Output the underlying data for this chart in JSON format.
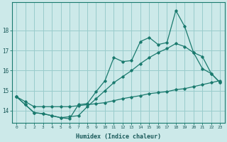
{
  "xlabel": "Humidex (Indice chaleur)",
  "background_color": "#cce9e9",
  "grid_color": "#99cccc",
  "line_color": "#1a7a6e",
  "x_values": [
    0,
    1,
    2,
    3,
    4,
    5,
    6,
    7,
    8,
    9,
    10,
    11,
    12,
    13,
    14,
    15,
    16,
    17,
    18,
    19,
    20,
    21,
    22,
    23
  ],
  "line1_y": [
    14.7,
    14.3,
    13.9,
    13.85,
    13.75,
    13.65,
    13.6,
    14.3,
    14.35,
    14.95,
    15.5,
    16.65,
    16.45,
    16.5,
    17.45,
    17.65,
    17.3,
    17.4,
    19.0,
    18.2,
    16.9,
    16.1,
    15.85,
    15.4
  ],
  "line2_y": [
    14.7,
    14.3,
    13.9,
    13.85,
    13.75,
    13.65,
    13.7,
    13.75,
    14.2,
    14.6,
    15.0,
    15.4,
    15.7,
    16.0,
    16.35,
    16.65,
    16.9,
    17.1,
    17.35,
    17.2,
    16.9,
    16.7,
    15.85,
    15.4
  ],
  "line3_y": [
    14.7,
    14.45,
    14.2,
    14.2,
    14.2,
    14.2,
    14.2,
    14.25,
    14.3,
    14.35,
    14.4,
    14.5,
    14.6,
    14.68,
    14.75,
    14.85,
    14.9,
    14.95,
    15.05,
    15.1,
    15.2,
    15.3,
    15.4,
    15.5
  ],
  "ylim": [
    13.4,
    19.4
  ],
  "yticks": [
    14,
    15,
    16,
    17,
    18
  ],
  "xlim": [
    -0.5,
    23.5
  ]
}
